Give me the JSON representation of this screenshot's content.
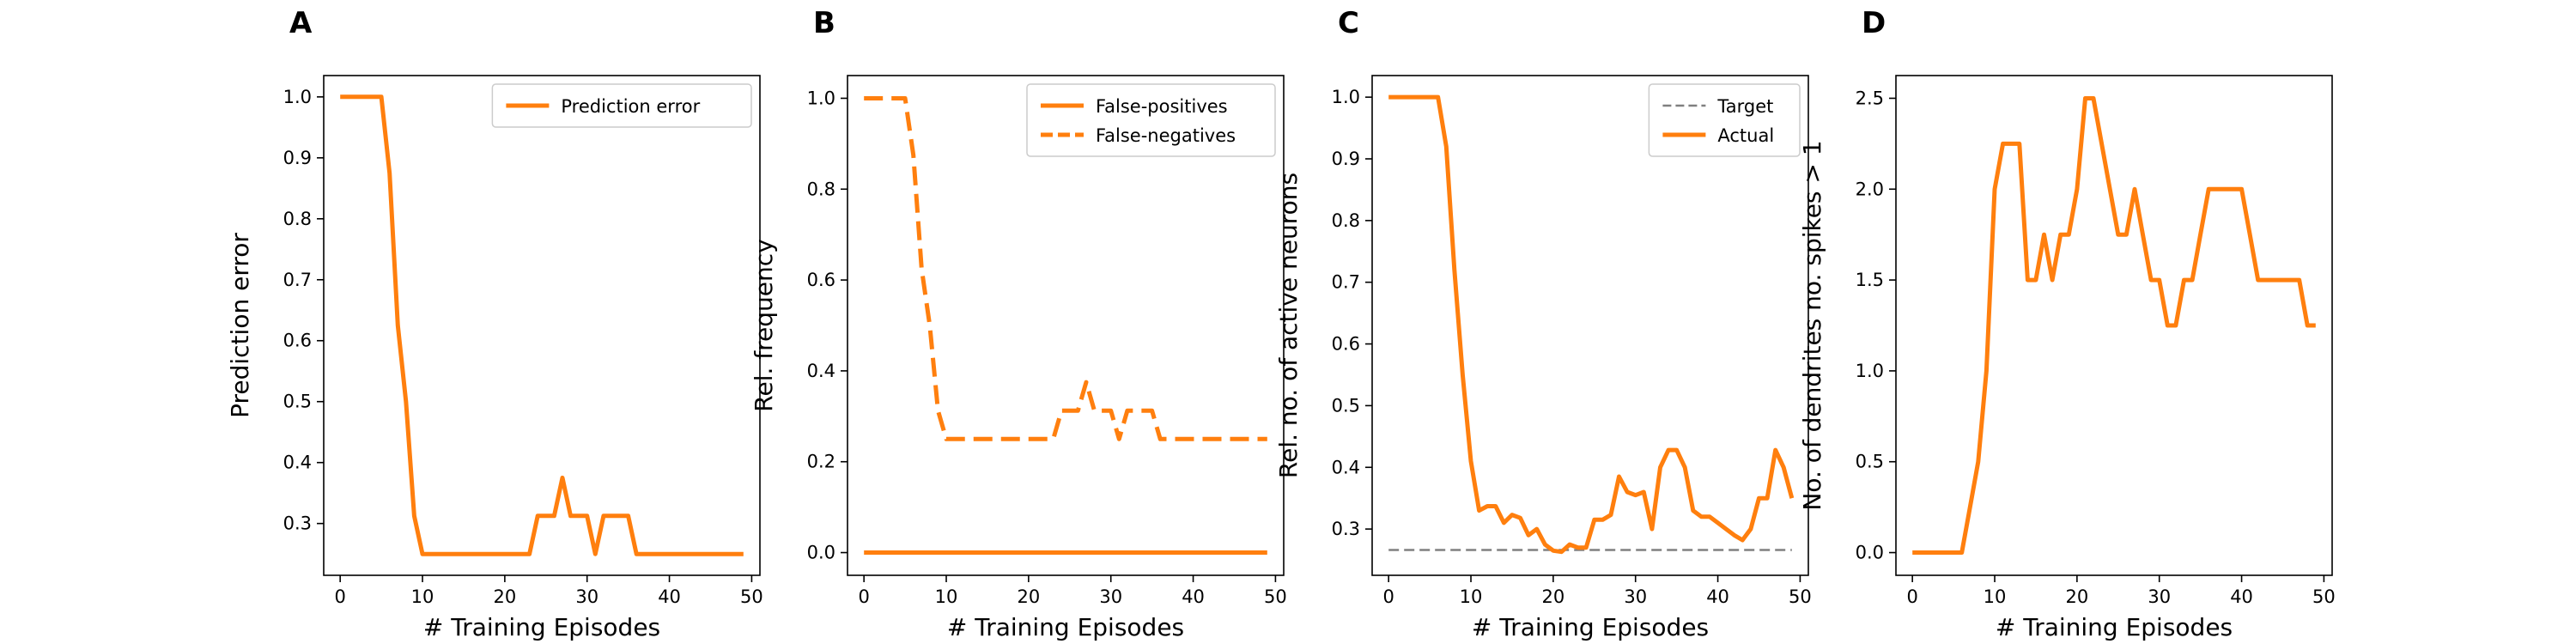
{
  "chart_data": [
    {
      "panel_label": "A",
      "type": "line",
      "xlabel": "# Training Episodes",
      "ylabel": "Prediction error",
      "xlim": [
        -2,
        51
      ],
      "ylim": [
        0.215,
        1.035
      ],
      "xticks": [
        0,
        10,
        20,
        30,
        40,
        50
      ],
      "xtick_labels": [
        "0",
        "10",
        "20",
        "30",
        "40",
        "50"
      ],
      "yticks": [
        0.3,
        0.4,
        0.5,
        0.6,
        0.7,
        0.8,
        0.9,
        1.0
      ],
      "ytick_labels": [
        "0.3",
        "0.4",
        "0.5",
        "0.6",
        "0.7",
        "0.8",
        "0.9",
        "1.0"
      ],
      "legend": "top-right",
      "series": [
        {
          "name": "Prediction error",
          "color": "#ff7f0e",
          "dash": "solid",
          "x": [
            0,
            1,
            2,
            3,
            4,
            5,
            6,
            7,
            8,
            9,
            10,
            11,
            12,
            13,
            14,
            15,
            16,
            17,
            18,
            19,
            20,
            21,
            22,
            23,
            24,
            25,
            26,
            27,
            28,
            29,
            30,
            31,
            32,
            33,
            34,
            35,
            36,
            37,
            38,
            39,
            40,
            41,
            42,
            43,
            44,
            45,
            46,
            47,
            48,
            49
          ],
          "y": [
            1.0,
            1.0,
            1.0,
            1.0,
            1.0,
            1.0,
            0.875,
            0.625,
            0.5,
            0.3125,
            0.25,
            0.25,
            0.25,
            0.25,
            0.25,
            0.25,
            0.25,
            0.25,
            0.25,
            0.25,
            0.25,
            0.25,
            0.25,
            0.25,
            0.3125,
            0.3125,
            0.3125,
            0.375,
            0.3125,
            0.3125,
            0.3125,
            0.25,
            0.3125,
            0.3125,
            0.3125,
            0.3125,
            0.25,
            0.25,
            0.25,
            0.25,
            0.25,
            0.25,
            0.25,
            0.25,
            0.25,
            0.25,
            0.25,
            0.25,
            0.25,
            0.25
          ]
        }
      ]
    },
    {
      "panel_label": "B",
      "type": "line",
      "xlabel": "# Training Episodes",
      "ylabel": "Rel. frequency",
      "xlim": [
        -2,
        51
      ],
      "ylim": [
        -0.05,
        1.05
      ],
      "xticks": [
        0,
        10,
        20,
        30,
        40,
        50
      ],
      "xtick_labels": [
        "0",
        "10",
        "20",
        "30",
        "40",
        "50"
      ],
      "yticks": [
        0.0,
        0.2,
        0.4,
        0.6,
        0.8,
        1.0
      ],
      "ytick_labels": [
        "0.0",
        "0.2",
        "0.4",
        "0.6",
        "0.8",
        "1.0"
      ],
      "legend": "top-right",
      "series": [
        {
          "name": "False-positives",
          "color": "#ff7f0e",
          "dash": "solid",
          "x": [
            0,
            49
          ],
          "y": [
            0.0,
            0.0
          ]
        },
        {
          "name": "False-negatives",
          "color": "#ff7f0e",
          "dash": "dashed",
          "x": [
            0,
            1,
            2,
            3,
            4,
            5,
            6,
            7,
            8,
            9,
            10,
            11,
            12,
            13,
            14,
            15,
            16,
            17,
            18,
            19,
            20,
            21,
            22,
            23,
            24,
            25,
            26,
            27,
            28,
            29,
            30,
            31,
            32,
            33,
            34,
            35,
            36,
            37,
            38,
            39,
            40,
            41,
            42,
            43,
            44,
            45,
            46,
            47,
            48,
            49
          ],
          "y": [
            1.0,
            1.0,
            1.0,
            1.0,
            1.0,
            1.0,
            0.875,
            0.625,
            0.5,
            0.3125,
            0.25,
            0.25,
            0.25,
            0.25,
            0.25,
            0.25,
            0.25,
            0.25,
            0.25,
            0.25,
            0.25,
            0.25,
            0.25,
            0.25,
            0.3125,
            0.3125,
            0.3125,
            0.375,
            0.3125,
            0.3125,
            0.3125,
            0.25,
            0.3125,
            0.3125,
            0.3125,
            0.3125,
            0.25,
            0.25,
            0.25,
            0.25,
            0.25,
            0.25,
            0.25,
            0.25,
            0.25,
            0.25,
            0.25,
            0.25,
            0.25,
            0.25
          ]
        }
      ]
    },
    {
      "panel_label": "C",
      "type": "line",
      "xlabel": "# Training Episodes",
      "ylabel": "Rel. no. of active neurons",
      "xlim": [
        -2,
        51
      ],
      "ylim": [
        0.225,
        1.035
      ],
      "xticks": [
        0,
        10,
        20,
        30,
        40,
        50
      ],
      "xtick_labels": [
        "0",
        "10",
        "20",
        "30",
        "40",
        "50"
      ],
      "yticks": [
        0.3,
        0.4,
        0.5,
        0.6,
        0.7,
        0.8,
        0.9,
        1.0
      ],
      "ytick_labels": [
        "0.3",
        "0.4",
        "0.5",
        "0.6",
        "0.7",
        "0.8",
        "0.9",
        "1.0"
      ],
      "legend": "top-right",
      "series": [
        {
          "name": "Target",
          "color": "#808080",
          "dash": "dashed-thin",
          "x": [
            0,
            49
          ],
          "y": [
            0.266,
            0.266
          ]
        },
        {
          "name": "Actual",
          "color": "#ff7f0e",
          "dash": "solid",
          "x": [
            0,
            1,
            2,
            3,
            4,
            5,
            6,
            7,
            8,
            9,
            10,
            11,
            12,
            13,
            14,
            15,
            16,
            17,
            18,
            19,
            20,
            21,
            22,
            23,
            24,
            25,
            26,
            27,
            28,
            29,
            30,
            31,
            32,
            33,
            34,
            35,
            36,
            37,
            38,
            39,
            40,
            41,
            42,
            43,
            44,
            45,
            46,
            47,
            48,
            49
          ],
          "y": [
            1.0,
            1.0,
            1.0,
            1.0,
            1.0,
            1.0,
            1.0,
            0.92,
            0.72,
            0.55,
            0.41,
            0.33,
            0.337,
            0.337,
            0.31,
            0.323,
            0.318,
            0.29,
            0.3,
            0.275,
            0.265,
            0.263,
            0.275,
            0.27,
            0.27,
            0.315,
            0.315,
            0.323,
            0.385,
            0.36,
            0.355,
            0.36,
            0.3,
            0.4,
            0.428,
            0.428,
            0.4,
            0.33,
            0.32,
            0.32,
            0.31,
            0.3,
            0.29,
            0.282,
            0.3,
            0.35,
            0.35,
            0.428,
            0.4,
            0.35
          ]
        }
      ]
    },
    {
      "panel_label": "D",
      "type": "line",
      "xlabel": "# Training Episodes",
      "ylabel": "No. of dendrites no. spikes > 1",
      "xlim": [
        -2,
        51
      ],
      "ylim": [
        -0.125,
        2.625
      ],
      "xticks": [
        0,
        10,
        20,
        30,
        40,
        50
      ],
      "xtick_labels": [
        "0",
        "10",
        "20",
        "30",
        "40",
        "50"
      ],
      "yticks": [
        0.0,
        0.5,
        1.0,
        1.5,
        2.0,
        2.5
      ],
      "ytick_labels": [
        "0.0",
        "0.5",
        "1.0",
        "1.5",
        "2.0",
        "2.5"
      ],
      "legend": "none",
      "series": [
        {
          "color": "#ff7f0e",
          "dash": "solid",
          "x": [
            0,
            1,
            2,
            3,
            4,
            5,
            6,
            7,
            8,
            9,
            10,
            11,
            12,
            13,
            14,
            15,
            16,
            17,
            18,
            19,
            20,
            21,
            22,
            23,
            24,
            25,
            26,
            27,
            28,
            29,
            30,
            31,
            32,
            33,
            34,
            35,
            36,
            37,
            38,
            39,
            40,
            41,
            42,
            43,
            44,
            45,
            46,
            47,
            48,
            49
          ],
          "y": [
            0,
            0,
            0,
            0,
            0,
            0,
            0,
            0.25,
            0.5,
            1.0,
            2.0,
            2.25,
            2.25,
            2.25,
            1.5,
            1.5,
            1.75,
            1.5,
            1.75,
            1.75,
            2.0,
            2.5,
            2.5,
            2.25,
            2.0,
            1.75,
            1.75,
            2.0,
            1.75,
            1.5,
            1.5,
            1.25,
            1.25,
            1.5,
            1.5,
            1.75,
            2.0,
            2.0,
            2.0,
            2.0,
            2.0,
            1.75,
            1.5,
            1.5,
            1.5,
            1.5,
            1.5,
            1.5,
            1.25,
            1.25
          ]
        }
      ]
    }
  ]
}
